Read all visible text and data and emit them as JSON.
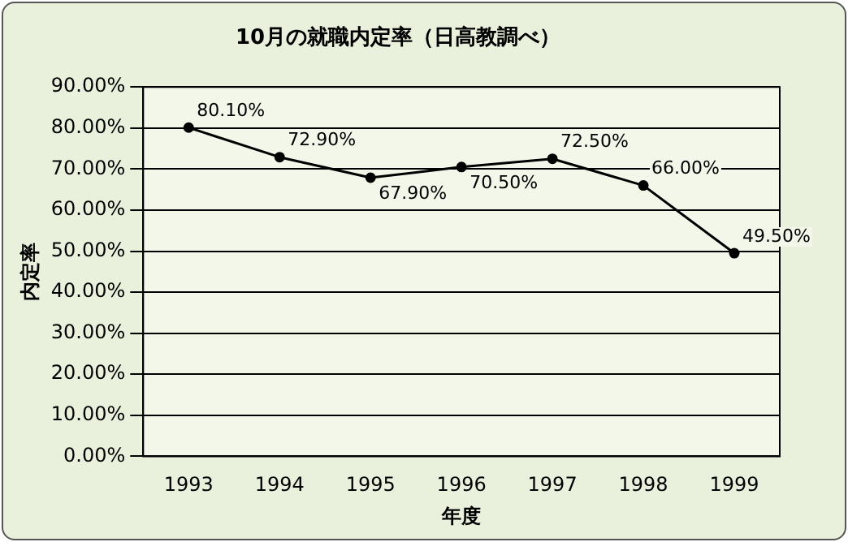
{
  "chart_data": {
    "type": "line",
    "title": "10月の就職内定率（日高教調べ）",
    "xlabel": "年度",
    "ylabel": "内定率",
    "categories": [
      "1993",
      "1994",
      "1995",
      "1996",
      "1997",
      "1998",
      "1999"
    ],
    "series": [
      {
        "color": "#000000",
        "values": [
          80.1,
          72.9,
          67.9,
          70.5,
          72.5,
          66.0,
          49.5
        ],
        "value_labels": [
          "80.10%",
          "72.90%",
          "67.90%",
          "70.50%",
          "72.50%",
          "66.00%",
          "49.50%"
        ]
      }
    ],
    "ylim": [
      0,
      90
    ],
    "yticks": [
      {
        "value": 0,
        "label": "0.00%"
      },
      {
        "value": 10,
        "label": "10.00%"
      },
      {
        "value": 20,
        "label": "20.00%"
      },
      {
        "value": 30,
        "label": "30.00%"
      },
      {
        "value": 40,
        "label": "40.00%"
      },
      {
        "value": 50,
        "label": "50.00%"
      },
      {
        "value": 60,
        "label": "60.00%"
      },
      {
        "value": 70,
        "label": "70.00%"
      },
      {
        "value": 80,
        "label": "80.00%"
      },
      {
        "value": 90,
        "label": "90.00%"
      }
    ],
    "grid": "y",
    "legend": false,
    "marker": "circle",
    "line_style": "solid"
  }
}
